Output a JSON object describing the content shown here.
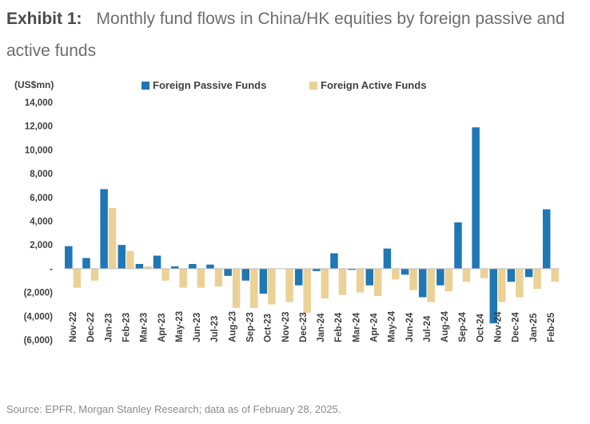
{
  "title": {
    "lead": "Exhibit 1:",
    "text": "Monthly fund flows in China/HK equities by foreign passive and active funds"
  },
  "source": "Source: EPFR, Morgan Stanley Research; data as of February 28, 2025.",
  "colors": {
    "passive": "#1f77b4",
    "active": "#ebd196",
    "axis": "#bfbfbf",
    "text": "#595959"
  },
  "chart_data": {
    "type": "bar",
    "title": "",
    "ylabel": "(US$mn)",
    "xlabel": "",
    "ylim": [
      -6000,
      14000
    ],
    "yticks": [
      14000,
      12000,
      10000,
      8000,
      6000,
      4000,
      2000,
      0,
      -2000,
      -4000,
      -6000
    ],
    "ytick_labels": [
      "14,000",
      "12,000",
      "10,000",
      "8,000",
      "6,000",
      "4,000",
      "2,000",
      "-",
      "(2,000)",
      "(4,000)",
      "(6,000)"
    ],
    "grid": false,
    "legend_position": "top",
    "categories": [
      "Nov-22",
      "Dec-22",
      "Jan-23",
      "Feb-23",
      "Mar-23",
      "Apr-23",
      "May-23",
      "Jun-23",
      "Jul-23",
      "Aug-23",
      "Sep-23",
      "Oct-23",
      "Nov-23",
      "Dec-23",
      "Jan-24",
      "Feb-24",
      "Mar-24",
      "Apr-24",
      "May-24",
      "Jun-24",
      "Jul-24",
      "Aug-24",
      "Sep-24",
      "Oct-24",
      "Nov-24",
      "Dec-24",
      "Jan-25",
      "Feb-25"
    ],
    "series": [
      {
        "name": "Foreign Passive Funds",
        "values": [
          1900,
          900,
          6700,
          2000,
          400,
          1100,
          200,
          400,
          350,
          -600,
          -1000,
          -2100,
          0,
          -1400,
          -200,
          1300,
          -100,
          -1400,
          1700,
          -500,
          -2400,
          -1400,
          3900,
          11900,
          -4600,
          -1100,
          -700,
          5000
        ]
      },
      {
        "name": "Foreign Active Funds",
        "values": [
          -1600,
          -1000,
          5100,
          1500,
          200,
          -1000,
          -1600,
          -1600,
          -1500,
          -3300,
          -3300,
          -3000,
          -2800,
          -3700,
          -2500,
          -2200,
          -2000,
          -2300,
          -900,
          -1800,
          -2800,
          -1900,
          -1100,
          -800,
          -2800,
          -2400,
          -1700,
          -1100
        ]
      }
    ]
  }
}
